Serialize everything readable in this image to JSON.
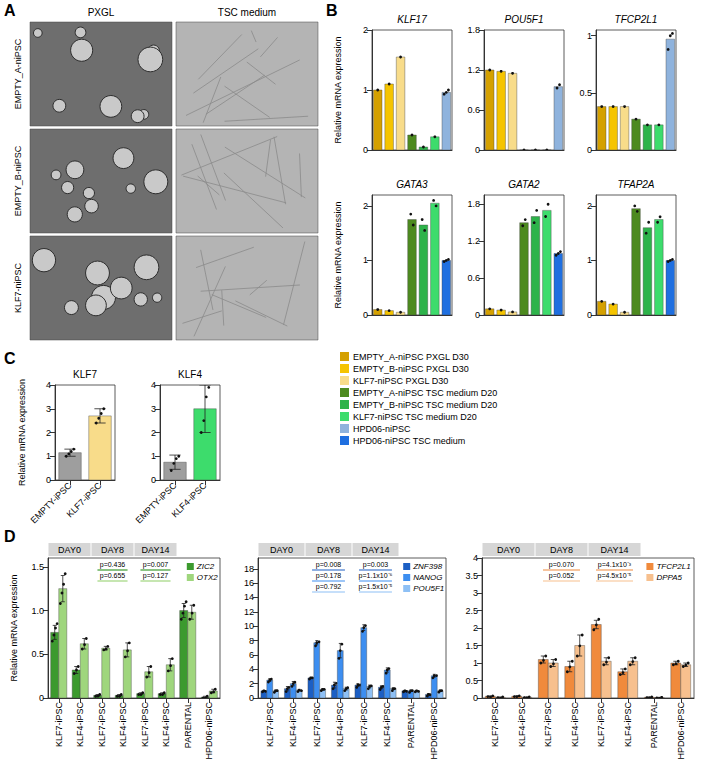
{
  "panel_letters": [
    "A",
    "B",
    "C",
    "D"
  ],
  "image_panel": {
    "columns": [
      "PXGL",
      "TSC medium"
    ],
    "rows": [
      "EMPTY_A-niPSC",
      "EMPTY_B-niPSC",
      "KLF7-niPSC"
    ]
  },
  "condition_legend": [
    {
      "name": "EMPTY_A-niPSC PXGL D30",
      "color": "#d4a000"
    },
    {
      "name": "EMPTY_B-niPSC PXGL D30",
      "color": "#f5c400"
    },
    {
      "name": "KLF7-niPSC PXGL D30",
      "color": "#f8dc8a"
    },
    {
      "name": "EMPTY_A-niPSC TSC medium D20",
      "color": "#4d8a1f"
    },
    {
      "name": "EMPTY_B-niPSC TSC medium D20",
      "color": "#2db34a"
    },
    {
      "name": "KLF7-niPSC TSC medium D20",
      "color": "#3ddc6c"
    },
    {
      "name": "HPD06-niPSC",
      "color": "#8fb3dd"
    },
    {
      "name": "HPD06-niPSC TSC medium",
      "color": "#1f6fe0"
    }
  ],
  "chart_data": [
    {
      "type": "bar",
      "title": "KLF17",
      "ylabel": "Relative mRNA expression",
      "tick_labels": "y",
      "categories": [
        "EMPTY_A-niPSC PXGL D30",
        "EMPTY_B-niPSC PXGL D30",
        "KLF7-niPSC PXGL D30",
        "EMPTY_A-niPSC TSC medium D20",
        "EMPTY_B-niPSC TSC medium D20",
        "KLF7-niPSC TSC medium D20",
        "HPD06-niPSC"
      ],
      "values": [
        1.0,
        1.1,
        1.55,
        0.25,
        0.05,
        0.22,
        0.96
      ],
      "points": [
        [
          1.0
        ],
        [
          1.1
        ],
        [
          1.55
        ],
        [
          0.25
        ],
        [
          0.05
        ],
        [
          0.22
        ],
        [
          0.93,
          0.96,
          1.0
        ]
      ],
      "ylim": [
        0,
        2
      ],
      "yticks": [
        0,
        1,
        2
      ]
    },
    {
      "type": "bar",
      "title": "POU5F1",
      "tick_labels": "y",
      "categories": [
        "EMPTY_A-niPSC PXGL D30",
        "EMPTY_B-niPSC PXGL D30",
        "KLF7-niPSC PXGL D30",
        "EMPTY_A-niPSC TSC medium D20",
        "EMPTY_B-niPSC TSC medium D20",
        "KLF7-niPSC TSC medium D20",
        "HPD06-niPSC"
      ],
      "values": [
        1.2,
        1.18,
        1.15,
        0,
        0,
        0,
        0.95
      ],
      "points": [
        [
          1.2
        ],
        [
          1.18
        ],
        [
          1.15
        ],
        [
          0
        ],
        [
          0
        ],
        [
          0
        ],
        [
          0.93,
          0.98
        ]
      ],
      "ylim": [
        0,
        1.8
      ],
      "yticks": [
        0,
        0.6,
        1.2,
        1.8
      ]
    },
    {
      "type": "bar",
      "title": "TFCP2L1",
      "tick_labels": "y",
      "categories": [
        "EMPTY_A-niPSC PXGL D30",
        "EMPTY_B-niPSC PXGL D30",
        "KLF7-niPSC PXGL D30",
        "EMPTY_A-niPSC TSC medium D20",
        "EMPTY_B-niPSC TSC medium D20",
        "KLF7-niPSC TSC medium D20",
        "HPD06-niPSC"
      ],
      "values": [
        0.38,
        0.38,
        0.38,
        0.27,
        0.22,
        0.22,
        0.97
      ],
      "points": [
        [
          0.38
        ],
        [
          0.38
        ],
        [
          0.38
        ],
        [
          0.27
        ],
        [
          0.22
        ],
        [
          0.22
        ],
        [
          0.88,
          1.0,
          1.02
        ]
      ],
      "ylim": [
        0,
        1.05
      ],
      "yticks": [
        0,
        0.5,
        1
      ]
    },
    {
      "type": "bar",
      "title": "GATA3",
      "ylabel": "Relative mRNA expression",
      "tick_labels": "y",
      "categories": [
        "EMPTY_A-niPSC PXGL D30",
        "EMPTY_B-niPSC PXGL D30",
        "KLF7-niPSC PXGL D30",
        "EMPTY_A-niPSC TSC medium D20",
        "EMPTY_B-niPSC TSC medium D20",
        "KLF7-niPSC TSC medium D20",
        "HPD06-niPSC TSC medium"
      ],
      "values": [
        0.1,
        0.08,
        0.05,
        1.75,
        1.65,
        2.05,
        1.0
      ],
      "points": [
        [
          0.1
        ],
        [
          0.08
        ],
        [
          0.05
        ],
        [
          1.85,
          1.65
        ],
        [
          1.75,
          1.55
        ],
        [
          2.1,
          2.0
        ],
        [
          0.98,
          1.0,
          1.02
        ]
      ],
      "ylim": [
        0,
        2.2
      ],
      "yticks": [
        0,
        1,
        2
      ]
    },
    {
      "type": "bar",
      "title": "GATA2",
      "tick_labels": "y",
      "categories": [
        "EMPTY_A-niPSC PXGL D30",
        "EMPTY_B-niPSC PXGL D30",
        "KLF7-niPSC PXGL D30",
        "EMPTY_A-niPSC TSC medium D20",
        "EMPTY_B-niPSC TSC medium D20",
        "KLF7-niPSC TSC medium D20",
        "HPD06-niPSC TSC medium"
      ],
      "values": [
        0.1,
        0.08,
        0.05,
        1.5,
        1.6,
        1.7,
        1.0
      ],
      "points": [
        [
          0.1
        ],
        [
          0.08
        ],
        [
          0.05
        ],
        [
          1.45,
          1.55
        ],
        [
          1.5,
          1.7
        ],
        [
          1.6,
          1.8
        ],
        [
          0.97,
          1.0,
          1.03
        ]
      ],
      "ylim": [
        0,
        1.95
      ],
      "yticks": [
        0,
        0.6,
        1.2,
        1.8
      ]
    },
    {
      "type": "bar",
      "title": "TFAP2A",
      "tick_labels": "y",
      "categories": [
        "EMPTY_A-niPSC PXGL D30",
        "EMPTY_B-niPSC PXGL D30",
        "KLF7-niPSC PXGL D30",
        "EMPTY_A-niPSC TSC medium D20",
        "EMPTY_B-niPSC TSC medium D20",
        "KLF7-niPSC TSC medium D20",
        "HPD06-niPSC TSC medium"
      ],
      "values": [
        0.25,
        0.2,
        0.05,
        1.95,
        1.6,
        1.75,
        1.0
      ],
      "points": [
        [
          0.25
        ],
        [
          0.2
        ],
        [
          0.05
        ],
        [
          2.0,
          1.9
        ],
        [
          1.5,
          1.7
        ],
        [
          1.7,
          1.8
        ],
        [
          0.98,
          1.0,
          1.02
        ]
      ],
      "ylim": [
        0,
        2.2
      ],
      "yticks": [
        0,
        1,
        2
      ]
    },
    {
      "type": "bar",
      "title": "KLF7",
      "ylabel": "Relative mRNA expression",
      "categories": [
        "EMPTY-iPSC",
        "KLF7-iPSC"
      ],
      "colors": [
        "#9e9e9e",
        "#f8dc8a"
      ],
      "values": [
        1.15,
        2.7
      ],
      "errors": [
        0.15,
        0.3
      ],
      "points": [
        [
          1.0,
          1.1,
          1.2,
          1.3
        ],
        [
          2.4,
          2.6,
          2.8,
          3.0
        ]
      ],
      "ylim": [
        0,
        4
      ],
      "yticks": [
        0,
        1,
        2,
        3,
        4
      ]
    },
    {
      "type": "bar",
      "title": "KLF4",
      "categories": [
        "EMPTY-iPSC",
        "KLF4-iPSC"
      ],
      "colors": [
        "#9e9e9e",
        "#3ddc6c"
      ],
      "values": [
        0.75,
        3.0
      ],
      "errors": [
        0.3,
        1.0
      ],
      "points": [
        [
          0.4,
          0.7,
          0.9,
          1.0
        ],
        [
          2.0,
          2.5,
          3.5,
          3.9
        ]
      ],
      "ylim": [
        0,
        4
      ],
      "yticks": [
        0,
        1,
        2,
        3,
        4
      ]
    },
    {
      "type": "bar",
      "ylabel": "Relative mRNA expression",
      "legend": "top-right",
      "categories": [
        "KLF7-iPSC",
        "KLF4-iPSC",
        "KLF7-iPSC",
        "KLF4-iPSC",
        "KLF7-iPSC",
        "KLF4-iPSC",
        "PARENTAL",
        "HPD06-niPSC"
      ],
      "facets": [
        {
          "label": "DAY0",
          "count": 2
        },
        {
          "label": "DAY8",
          "count": 2
        },
        {
          "label": "DAY14",
          "count": 2
        }
      ],
      "series": [
        {
          "name": "ZIC2",
          "color": "#3c9a2e",
          "values": [
            0.75,
            0.32,
            0.03,
            0.03,
            0.05,
            0.05,
            1.0,
            0.01
          ],
          "errors": [
            0.08,
            0.04,
            0.01,
            0.01,
            0.01,
            0.01,
            0.08,
            0.01
          ],
          "points": [
            [
              0.65,
              0.72,
              0.8,
              0.85
            ],
            [
              0.28,
              0.33,
              0.36
            ],
            [
              0.02,
              0.03,
              0.04
            ],
            [
              0.02,
              0.03,
              0.04
            ],
            [
              0.04,
              0.05,
              0.06
            ],
            [
              0.04,
              0.05,
              0.06
            ],
            [
              0.9,
              0.97,
              1.05,
              1.1
            ],
            [
              0.0,
              0.01,
              0.02
            ]
          ]
        },
        {
          "name": "OTX2",
          "color": "#9fd67d",
          "values": [
            1.25,
            0.62,
            0.57,
            0.55,
            0.3,
            0.38,
            0.98,
            0.08
          ],
          "errors": [
            0.15,
            0.06,
            0.02,
            0.08,
            0.06,
            0.07,
            0.08,
            0.02
          ],
          "points": [
            [
              1.08,
              1.2,
              1.3,
              1.42
            ],
            [
              0.56,
              0.62,
              0.68
            ],
            [
              0.55,
              0.57,
              0.59
            ],
            [
              0.47,
              0.55,
              0.63
            ],
            [
              0.24,
              0.3,
              0.36
            ],
            [
              0.31,
              0.38,
              0.45
            ],
            [
              0.9,
              0.98,
              1.06
            ],
            [
              0.06,
              0.08,
              0.1
            ]
          ]
        }
      ],
      "annotations": [
        {
          "facet": "DAY8",
          "texts": [
            "p=0.436",
            "p=0.655"
          ]
        },
        {
          "facet": "DAY14",
          "texts": [
            "p=0.007",
            "p=0.127"
          ]
        }
      ],
      "ylim": [
        0,
        1.6
      ],
      "yticks": [
        0,
        0.5,
        {
          "value": 1,
          "label": "1.0"
        },
        1.5
      ]
    },
    {
      "type": "bar",
      "legend": "top-right",
      "categories": [
        "KLF7-iPSC",
        "KLF4-iPSC",
        "KLF7-iPSC",
        "KLF4-iPSC",
        "KLF7-iPSC",
        "KLF4-iPSC",
        "PARENTAL",
        "HPD06-niPSC"
      ],
      "facets": [
        {
          "label": "DAY0",
          "count": 2
        },
        {
          "label": "DAY8",
          "count": 2
        },
        {
          "label": "DAY14",
          "count": 2
        }
      ],
      "series": [
        {
          "name": "ZNF398",
          "color": "#1c5fc4",
          "values": [
            1.0,
            1.3,
            2.8,
            1.8,
            1.8,
            1.5,
            1.0,
            0.5
          ],
          "errors": [
            0.05,
            0.3,
            0.1,
            0.4,
            0.2,
            0.2,
            0.05,
            0.1
          ],
          "points": [
            [
              0.95,
              1.0,
              1.05
            ],
            [
              1.0,
              1.3,
              1.6
            ],
            [
              2.7,
              2.8,
              2.9
            ],
            [
              1.4,
              1.8,
              2.2
            ],
            [
              1.6,
              1.8,
              2.0
            ],
            [
              1.3,
              1.5,
              1.7
            ],
            [
              0.95,
              1.0,
              1.05
            ],
            [
              0.4,
              0.5,
              0.6
            ]
          ]
        },
        {
          "name": "NANOG",
          "color": "#3d8ef0",
          "values": [
            2.5,
            2.0,
            7.7,
            6.6,
            9.8,
            3.9,
            1.0,
            3.1
          ],
          "errors": [
            0.2,
            0.3,
            0.3,
            1.0,
            0.4,
            0.3,
            0.1,
            0.2
          ],
          "points": [
            [
              2.3,
              2.5,
              2.7
            ],
            [
              1.7,
              2.0,
              2.3
            ],
            [
              7.4,
              7.7,
              8.0
            ],
            [
              5.6,
              6.6,
              7.6
            ],
            [
              9.4,
              9.8,
              10.2
            ],
            [
              3.6,
              3.9,
              4.2
            ],
            [
              0.9,
              1.0,
              1.1
            ],
            [
              2.9,
              3.1,
              3.3
            ]
          ]
        },
        {
          "name": "POU5F1",
          "color": "#8ec0f5",
          "values": [
            1.0,
            1.1,
            1.2,
            1.3,
            1.6,
            1.3,
            1.0,
            1.0
          ],
          "errors": [
            0.1,
            0.1,
            0.1,
            0.2,
            0.2,
            0.1,
            0.05,
            0.1
          ],
          "points": [
            [
              0.9,
              1.0,
              1.1
            ],
            [
              1.0,
              1.1,
              1.2
            ],
            [
              1.1,
              1.2,
              1.3
            ],
            [
              1.1,
              1.3,
              1.5
            ],
            [
              1.4,
              1.6,
              1.8
            ],
            [
              1.2,
              1.3,
              1.4
            ],
            [
              0.95,
              1.0,
              1.05
            ],
            [
              0.9,
              1.0,
              1.1
            ]
          ]
        }
      ],
      "annotations": [
        {
          "facet": "DAY8",
          "texts": [
            "p=0.008",
            "p=0.178",
            "p=0.792"
          ]
        },
        {
          "facet": "DAY14",
          "texts": [
            "p=0.003",
            "p=1.1x10⁻⁶",
            "p=1.5x10⁻⁵"
          ]
        }
      ],
      "ylim": [
        0,
        19.5
      ],
      "yticks": [
        0,
        2,
        4,
        6,
        8,
        10,
        12,
        14,
        16,
        18
      ]
    },
    {
      "type": "bar",
      "legend": "top-right",
      "categories": [
        "KLF7-iPSC",
        "KLF4-iPSC",
        "KLF7-iPSC",
        "KLF4-iPSC",
        "KLF7-iPSC",
        "KLF4-iPSC",
        "PARENTAL",
        "HPD06-niPSC"
      ],
      "facets": [
        {
          "label": "DAY0",
          "count": 2
        },
        {
          "label": "DAY8",
          "count": 2
        },
        {
          "label": "DAY14",
          "count": 2
        }
      ],
      "series": [
        {
          "name": "TFCP2L1",
          "color": "#f08a3c",
          "values": [
            0.05,
            0.05,
            1.1,
            0.9,
            2.1,
            0.75,
            0.02,
            1.0
          ],
          "errors": [
            0.01,
            0.01,
            0.1,
            0.15,
            0.12,
            0.08,
            0.01,
            0.05
          ],
          "points": [
            [
              0.04,
              0.05,
              0.06
            ],
            [
              0.04,
              0.05,
              0.06
            ],
            [
              1.0,
              1.1,
              1.2
            ],
            [
              0.75,
              0.9,
              1.05
            ],
            [
              1.95,
              2.1,
              2.25
            ],
            [
              0.67,
              0.75,
              0.83
            ],
            [
              0.01,
              0.02,
              0.03
            ],
            [
              0.95,
              1.0,
              1.05
            ]
          ]
        },
        {
          "name": "DPPA5",
          "color": "#f7c08e",
          "values": [
            0.02,
            0.02,
            1.0,
            1.5,
            1.05,
            1.05,
            0.01,
            0.95
          ],
          "errors": [
            0.01,
            0.01,
            0.1,
            0.3,
            0.1,
            0.1,
            0.01,
            0.05
          ],
          "points": [
            [
              0.01,
              0.02,
              0.03
            ],
            [
              0.01,
              0.02,
              0.03
            ],
            [
              0.9,
              1.0,
              1.1
            ],
            [
              1.2,
              1.5,
              1.8
            ],
            [
              0.95,
              1.05,
              1.15
            ],
            [
              0.95,
              1.05,
              1.15
            ],
            [
              0.0,
              0.01,
              0.02
            ],
            [
              0.9,
              0.95,
              1.0
            ]
          ]
        }
      ],
      "annotations": [
        {
          "facet": "DAY8",
          "texts": [
            "p=0.070",
            "p=0.052"
          ]
        },
        {
          "facet": "DAY14",
          "texts": [
            "p=4.1x10⁻³",
            "p=4.5x10⁻⁵"
          ]
        }
      ],
      "ylim": [
        0,
        4
      ],
      "yticks": [
        0,
        0.5,
        1,
        1.5,
        2,
        2.5,
        3,
        3.5,
        4
      ]
    }
  ]
}
